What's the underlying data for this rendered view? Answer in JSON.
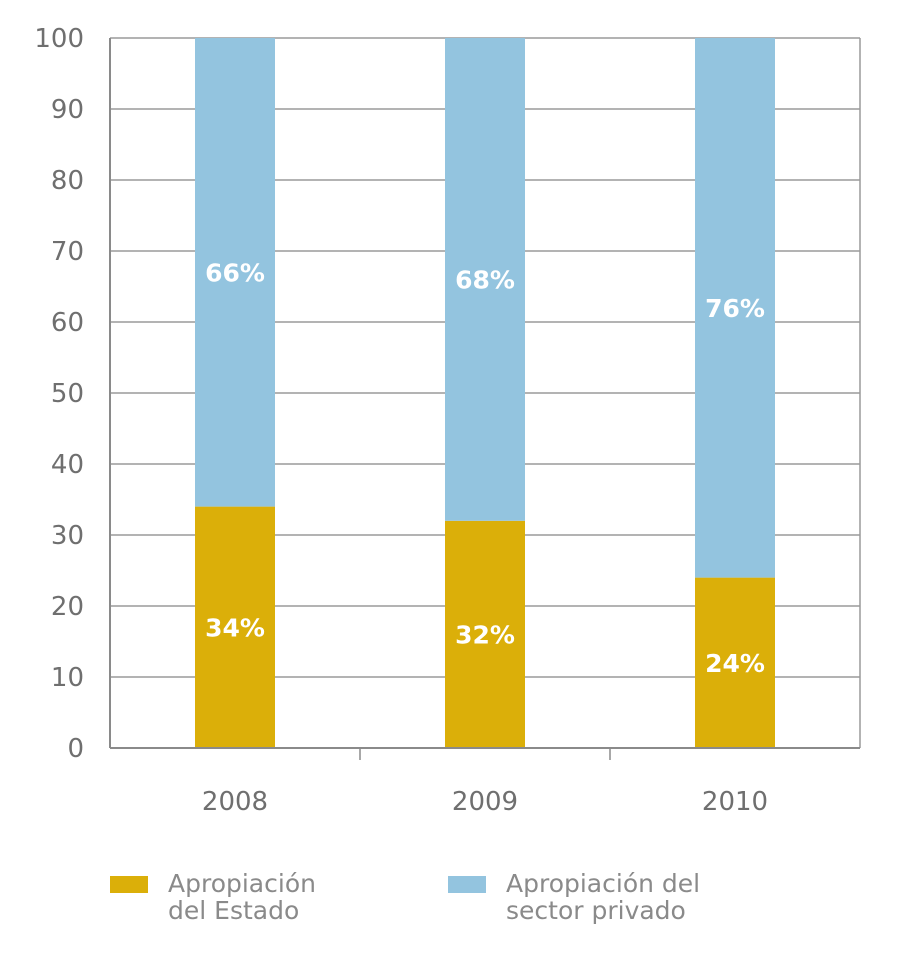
{
  "chart_data": {
    "type": "bar",
    "stacked": true,
    "categories": [
      "2008",
      "2009",
      "2010"
    ],
    "series": [
      {
        "name": "Apropiación del Estado",
        "color": "#dbaf09",
        "values": [
          34,
          32,
          24
        ],
        "labels": [
          "34%",
          "32%",
          "24%"
        ]
      },
      {
        "name": "Apropiación del sector privado",
        "color": "#93c4df",
        "values": [
          66,
          68,
          76
        ],
        "labels": [
          "66%",
          "68%",
          "76%"
        ]
      }
    ],
    "ylim": [
      0,
      100
    ],
    "yticks": [
      "0",
      "10",
      "20",
      "30",
      "40",
      "50",
      "60",
      "70",
      "80",
      "90",
      "100"
    ],
    "grid": true,
    "legend_position": "bottom"
  },
  "legend": {
    "items": [
      {
        "label": "Apropiación\ndel Estado",
        "color": "#dbaf09"
      },
      {
        "label": "Apropiación del\nsector privado",
        "color": "#93c4df"
      }
    ]
  }
}
